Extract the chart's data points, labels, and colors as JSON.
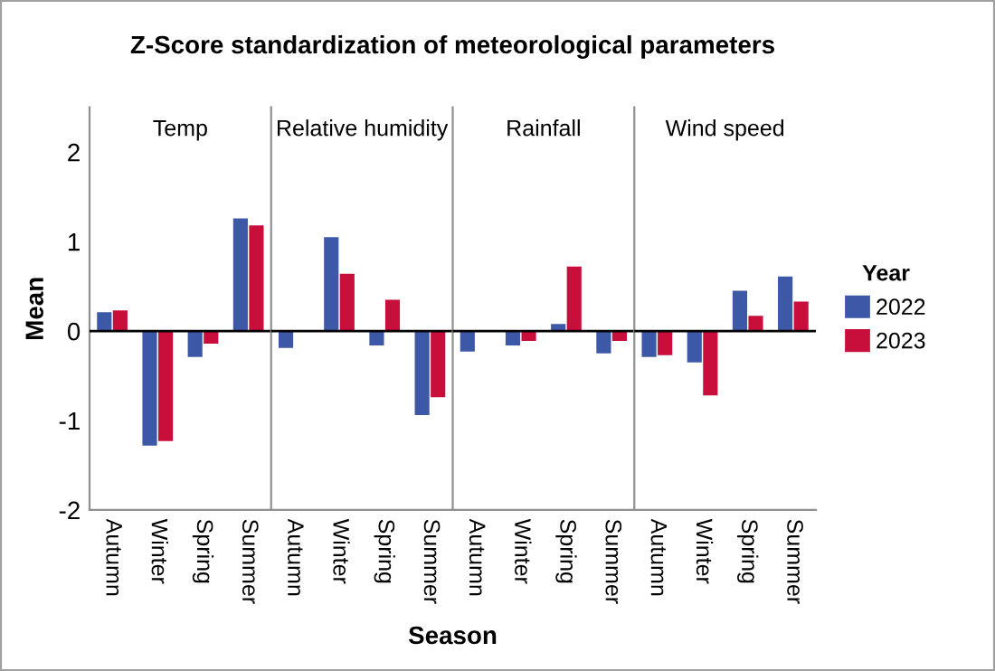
{
  "chart_data": [
    {
      "type": "bar",
      "title": "Z-Score standardization of meteorological parameters",
      "subtitle": "Temp",
      "xlabel": "Season",
      "ylabel": "Mean",
      "categories": [
        "Autumn",
        "Winter",
        "Spring",
        "Summer"
      ],
      "series": [
        {
          "name": "2022",
          "color": "#3e58a8",
          "values": [
            0.21,
            -1.28,
            -0.29,
            1.26
          ]
        },
        {
          "name": "2023",
          "color": "#c80f3c",
          "values": [
            0.23,
            -1.23,
            -0.14,
            1.18
          ]
        }
      ],
      "ylim": [
        -2,
        2.5
      ],
      "yticks": [
        -2,
        -1,
        0,
        1,
        2
      ],
      "ref_lines": [
        {
          "axis": "y",
          "value": 0,
          "color": "#000000"
        }
      ],
      "grid": false,
      "legend": "right",
      "legend_title": "Year"
    },
    {
      "type": "bar",
      "subtitle": "Relative humidity",
      "categories": [
        "Autumn",
        "Winter",
        "Spring",
        "Summer"
      ],
      "series": [
        {
          "name": "2022",
          "color": "#3e58a8",
          "values": [
            -0.19,
            1.05,
            -0.16,
            -0.94
          ]
        },
        {
          "name": "2023",
          "color": "#c80f3c",
          "values": [
            null,
            0.64,
            0.35,
            -0.74
          ]
        }
      ],
      "ylim": [
        -2,
        2.5
      ],
      "yticks": [
        -2,
        -1,
        0,
        1,
        2
      ],
      "tick_labels": "x",
      "ref_lines": [
        {
          "axis": "y",
          "value": 0,
          "color": "#000000"
        }
      ],
      "grid": false
    },
    {
      "type": "bar",
      "subtitle": "Rainfall",
      "categories": [
        "Autumn",
        "Winter",
        "Spring",
        "Summer"
      ],
      "series": [
        {
          "name": "2022",
          "color": "#3e58a8",
          "values": [
            -0.23,
            -0.16,
            0.08,
            -0.25
          ]
        },
        {
          "name": "2023",
          "color": "#c80f3c",
          "values": [
            -0.01,
            -0.11,
            0.72,
            -0.11
          ]
        }
      ],
      "ylim": [
        -2,
        2.5
      ],
      "yticks": [
        -2,
        -1,
        0,
        1,
        2
      ],
      "tick_labels": "x",
      "ref_lines": [
        {
          "axis": "y",
          "value": 0,
          "color": "#000000"
        }
      ],
      "grid": false
    },
    {
      "type": "bar",
      "subtitle": "Wind speed",
      "categories": [
        "Autumn",
        "Winter",
        "Spring",
        "Summer"
      ],
      "series": [
        {
          "name": "2022",
          "color": "#3e58a8",
          "values": [
            -0.29,
            -0.35,
            0.45,
            0.61
          ]
        },
        {
          "name": "2023",
          "color": "#c80f3c",
          "values": [
            -0.27,
            -0.72,
            0.17,
            0.33
          ]
        }
      ],
      "ylim": [
        -2,
        2.5
      ],
      "yticks": [
        -2,
        -1,
        0,
        1,
        2
      ],
      "tick_labels": "x",
      "ref_lines": [
        {
          "axis": "y",
          "value": 0,
          "color": "#000000"
        }
      ],
      "grid": false
    }
  ]
}
